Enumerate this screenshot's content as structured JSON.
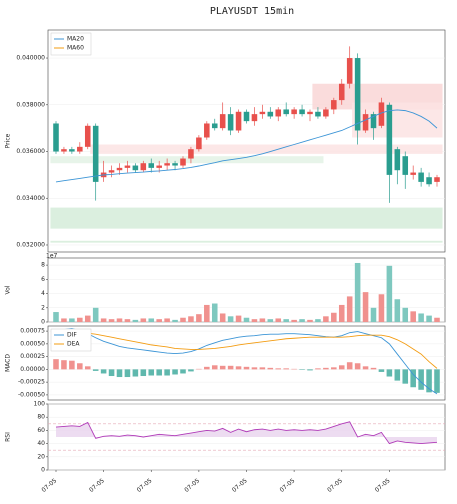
{
  "chart_data": [
    {
      "type": "candlestick",
      "title": "PLAYUSDT  15min",
      "ylabel": "Price",
      "categories": [
        "07-05",
        null,
        null,
        null,
        null,
        null,
        "07-05",
        null,
        null,
        null,
        null,
        null,
        "07-05",
        null,
        null,
        null,
        null,
        null,
        "07-05",
        null,
        null,
        null,
        null,
        null,
        "07-05",
        null,
        null,
        null,
        null,
        null,
        "07-05",
        null,
        null,
        null,
        null,
        null,
        "07-05",
        null,
        null,
        null,
        null,
        null,
        "07-05",
        null,
        null,
        null,
        null,
        null,
        null
      ],
      "open": [
        0.0372,
        0.036,
        0.0361,
        0.036,
        0.0362,
        0.0371,
        0.0349,
        0.0351,
        0.0352,
        0.0353,
        0.0354,
        0.0352,
        0.0355,
        0.0353,
        0.0354,
        0.0355,
        0.0354,
        0.0357,
        0.0361,
        0.0366,
        0.0372,
        0.037,
        0.0376,
        0.0369,
        0.0377,
        0.0373,
        0.0376,
        0.0377,
        0.0375,
        0.0378,
        0.0376,
        0.0378,
        0.0376,
        0.0377,
        0.0375,
        0.0378,
        0.0382,
        0.0389,
        0.04,
        0.0369,
        0.0376,
        0.0371,
        0.038,
        0.0361,
        0.0358,
        0.035,
        0.0351,
        0.0349,
        0.0347
      ],
      "high": [
        0.0373,
        0.0362,
        0.0362,
        0.0364,
        0.0372,
        0.0372,
        0.0356,
        0.0354,
        0.0355,
        0.0356,
        0.0355,
        0.0356,
        0.0357,
        0.0356,
        0.0357,
        0.0356,
        0.0358,
        0.0362,
        0.0367,
        0.0373,
        0.0374,
        0.0381,
        0.0379,
        0.0378,
        0.0378,
        0.0379,
        0.038,
        0.0379,
        0.0379,
        0.0381,
        0.0379,
        0.038,
        0.0378,
        0.0379,
        0.0379,
        0.0383,
        0.0391,
        0.0405,
        0.0402,
        0.0378,
        0.0377,
        0.0383,
        0.0381,
        0.0362,
        0.036,
        0.0354,
        0.0353,
        0.0351,
        0.035
      ],
      "low": [
        0.0359,
        0.0359,
        0.0359,
        0.0359,
        0.0361,
        0.0339,
        0.0347,
        0.0349,
        0.035,
        0.0351,
        0.0351,
        0.0351,
        0.0351,
        0.0351,
        0.0352,
        0.0352,
        0.0353,
        0.0355,
        0.036,
        0.0365,
        0.0369,
        0.0369,
        0.0367,
        0.0368,
        0.0372,
        0.0371,
        0.0374,
        0.0374,
        0.0373,
        0.0375,
        0.0374,
        0.0375,
        0.0373,
        0.0374,
        0.0374,
        0.0376,
        0.038,
        0.0387,
        0.0363,
        0.0368,
        0.0365,
        0.037,
        0.0338,
        0.0346,
        0.0344,
        0.0348,
        0.0345,
        0.0345,
        0.0345
      ],
      "close": [
        0.036,
        0.0361,
        0.036,
        0.0362,
        0.0371,
        0.0347,
        0.0351,
        0.0352,
        0.0353,
        0.0354,
        0.0352,
        0.0355,
        0.0353,
        0.0354,
        0.0355,
        0.0354,
        0.0357,
        0.0361,
        0.0366,
        0.0372,
        0.037,
        0.0376,
        0.0369,
        0.0377,
        0.0373,
        0.0376,
        0.0377,
        0.0375,
        0.0378,
        0.0376,
        0.0378,
        0.0376,
        0.0377,
        0.0375,
        0.0378,
        0.0382,
        0.0389,
        0.04,
        0.0369,
        0.0376,
        0.037,
        0.0381,
        0.035,
        0.0352,
        0.035,
        0.0351,
        0.0347,
        0.0346,
        0.0349
      ],
      "up_color": "#e8504c",
      "down_color": "#2a9d8f",
      "series": [
        {
          "name": "MA20",
          "color": "#3c95d6",
          "values": [
            0.0347,
            0.03475,
            0.0348,
            0.03485,
            0.0349,
            0.03495,
            0.035,
            0.03502,
            0.03505,
            0.03508,
            0.0351,
            0.03512,
            0.03515,
            0.03517,
            0.0352,
            0.03523,
            0.03527,
            0.03532,
            0.03538,
            0.03545,
            0.03552,
            0.0356,
            0.03565,
            0.0357,
            0.03575,
            0.03582,
            0.0359,
            0.036,
            0.0361,
            0.0362,
            0.0363,
            0.0364,
            0.0365,
            0.0366,
            0.0367,
            0.0368,
            0.0369,
            0.03705,
            0.0372,
            0.03735,
            0.0375,
            0.03765,
            0.03775,
            0.03778,
            0.03775,
            0.03765,
            0.0375,
            0.0373,
            0.037
          ]
        },
        {
          "name": "MA60",
          "color": "#f39c12",
          "values": [
            null,
            null,
            null,
            null,
            null,
            null,
            null,
            null,
            null,
            null,
            null,
            null,
            null,
            null,
            null,
            null,
            null,
            null,
            null,
            null,
            null,
            null,
            null,
            null,
            null,
            null,
            null,
            null,
            null,
            null,
            null,
            null,
            null,
            null,
            null,
            null,
            null,
            null,
            null,
            null,
            null,
            null,
            null,
            null,
            null,
            null,
            null,
            null,
            null
          ]
        }
      ],
      "zones": [
        {
          "low": 0.0327,
          "high": 0.0336,
          "start": 0,
          "end": 48,
          "color": "#d5ecd9"
        },
        {
          "low": 0.0321,
          "high": 0.03218,
          "start": 0,
          "end": 48,
          "color": "#d5ecd9"
        },
        {
          "low": 0.0355,
          "high": 0.0358,
          "start": 0,
          "end": 33,
          "color": "#e3f2e5"
        },
        {
          "low": 0.0359,
          "high": 0.0363,
          "start": 5,
          "end": 48,
          "color": "#fbe3e3"
        },
        {
          "low": 0.0378,
          "high": 0.0389,
          "start": 33,
          "end": 48,
          "color": "#f9d6d6"
        },
        {
          "low": 0.0366,
          "high": 0.0381,
          "start": 38,
          "end": 48,
          "color": "#fbe3e3"
        }
      ],
      "ylim": [
        0.0317,
        0.0412
      ],
      "yticks": [
        {
          "value": 0.032,
          "label": "0.032000"
        },
        {
          "value": 0.034,
          "label": "0.034000"
        },
        {
          "value": 0.036,
          "label": "0.036000"
        },
        {
          "value": 0.038,
          "label": "0.038000"
        },
        {
          "value": 0.04,
          "label": "0.040000"
        }
      ],
      "legend": "upper left",
      "grid": true
    },
    {
      "type": "bar",
      "ylabel": "Vol",
      "offset_label": "1e7",
      "values": [
        1.4,
        0.5,
        0.5,
        0.6,
        0.9,
        2.0,
        0.5,
        0.4,
        0.5,
        0.4,
        0.3,
        0.5,
        0.5,
        0.4,
        0.5,
        0.3,
        0.6,
        0.8,
        1.1,
        2.4,
        2.6,
        1.2,
        0.8,
        0.9,
        0.6,
        0.4,
        0.5,
        0.4,
        0.5,
        0.4,
        0.3,
        0.4,
        0.3,
        0.4,
        0.8,
        1.3,
        2.4,
        3.6,
        8.3,
        4.2,
        2.0,
        3.9,
        7.9,
        3.2,
        2.0,
        1.5,
        1.2,
        0.9,
        0.6
      ],
      "up_color": "#f0918e",
      "down_color": "#7ec8bf",
      "ylim": [
        0,
        9
      ],
      "yticks": [
        0,
        2,
        4,
        6,
        8
      ],
      "grid": true
    },
    {
      "type": "macd",
      "ylabel": "MACD",
      "series": [
        {
          "name": "DIF",
          "color": "#3c95d6",
          "values": [
            0.00072,
            0.00078,
            0.0008,
            0.00076,
            0.0007,
            0.00062,
            0.00055,
            0.0005,
            0.00045,
            0.00042,
            0.0004,
            0.00038,
            0.00036,
            0.00034,
            0.00032,
            0.00031,
            0.00032,
            0.00035,
            0.0004,
            0.00047,
            0.00052,
            0.00057,
            0.0006,
            0.00063,
            0.00065,
            0.00066,
            0.00068,
            0.00069,
            0.00069,
            0.0007,
            0.0007,
            0.00069,
            0.00068,
            0.00066,
            0.00064,
            0.00063,
            0.00066,
            0.00072,
            0.00074,
            0.0007,
            0.00066,
            0.00062,
            0.0005,
            0.0003,
            0.0001,
            -0.0001,
            -0.00025,
            -0.00038,
            -0.00048
          ]
        },
        {
          "name": "DEA",
          "color": "#f39c12",
          "values": [
            0.0007,
            0.00071,
            0.00072,
            0.00072,
            0.00071,
            0.00069,
            0.00066,
            0.00063,
            0.0006,
            0.00057,
            0.00054,
            0.00051,
            0.00048,
            0.00046,
            0.00044,
            0.00041,
            0.0004,
            0.00039,
            0.00039,
            0.0004,
            0.00041,
            0.00043,
            0.00045,
            0.00048,
            0.0005,
            0.00052,
            0.00054,
            0.00056,
            0.00058,
            0.0006,
            0.00061,
            0.00062,
            0.00063,
            0.00063,
            0.00063,
            0.00063,
            0.00063,
            0.00064,
            0.00066,
            0.00067,
            0.00067,
            0.00067,
            0.00064,
            0.00058,
            0.0005,
            0.0004,
            0.0003,
            0.00015,
            2e-05
          ]
        }
      ],
      "histogram": [
        0.0002,
        0.00018,
        0.00017,
        0.00012,
        6e-05,
        -3e-05,
        -8e-05,
        -0.00013,
        -0.00015,
        -0.00015,
        -0.00014,
        -0.00013,
        -0.00012,
        -0.00012,
        -0.00012,
        -0.0001,
        -8e-05,
        -4e-05,
        1e-05,
        5e-05,
        8e-05,
        7e-05,
        7e-05,
        6e-05,
        5e-05,
        4e-05,
        4e-05,
        3e-05,
        2e-05,
        2e-05,
        1e-05,
        -1e-05,
        -2e-05,
        2e-05,
        3e-05,
        4e-05,
        8e-05,
        0.00014,
        0.00012,
        6e-05,
        3e-05,
        -5e-05,
        -0.00014,
        -0.00022,
        -0.00028,
        -0.00035,
        -0.0004,
        -0.00045,
        -0.00046
      ],
      "pos_color": "#f0918e",
      "neg_color": "#5fb8ad",
      "ylim": [
        -0.0006,
        0.00085
      ],
      "yticks": [
        {
          "value": -0.0005,
          "label": "-0.00050"
        },
        {
          "value": -0.00025,
          "label": "-0.00025"
        },
        {
          "value": 0,
          "label": "0.00000"
        },
        {
          "value": 0.00025,
          "label": "0.00025"
        },
        {
          "value": 0.0005,
          "label": "0.00050"
        },
        {
          "value": 0.00075,
          "label": "0.00075"
        }
      ],
      "legend": "upper left",
      "grid": true
    },
    {
      "type": "line",
      "ylabel": "RSI",
      "series": [
        {
          "color": "#b03ab8",
          "values": [
            65,
            66,
            67,
            66,
            72,
            48,
            51,
            52,
            51,
            53,
            52,
            50,
            52,
            54,
            53,
            52,
            54,
            56,
            58,
            60,
            59,
            63,
            57,
            62,
            58,
            61,
            62,
            60,
            62,
            60,
            61,
            60,
            61,
            60,
            62,
            66,
            70,
            73,
            50,
            54,
            52,
            57,
            40,
            44,
            42,
            41,
            40,
            41,
            42
          ]
        }
      ],
      "fill_to": 50,
      "fill_color": "#e8d3ee",
      "hlines": [
        70,
        30
      ],
      "hline_color": "#e6a8b6",
      "ylim": [
        0,
        100
      ],
      "yticks": [
        0,
        20,
        40,
        60,
        80,
        100
      ],
      "grid": true
    }
  ]
}
